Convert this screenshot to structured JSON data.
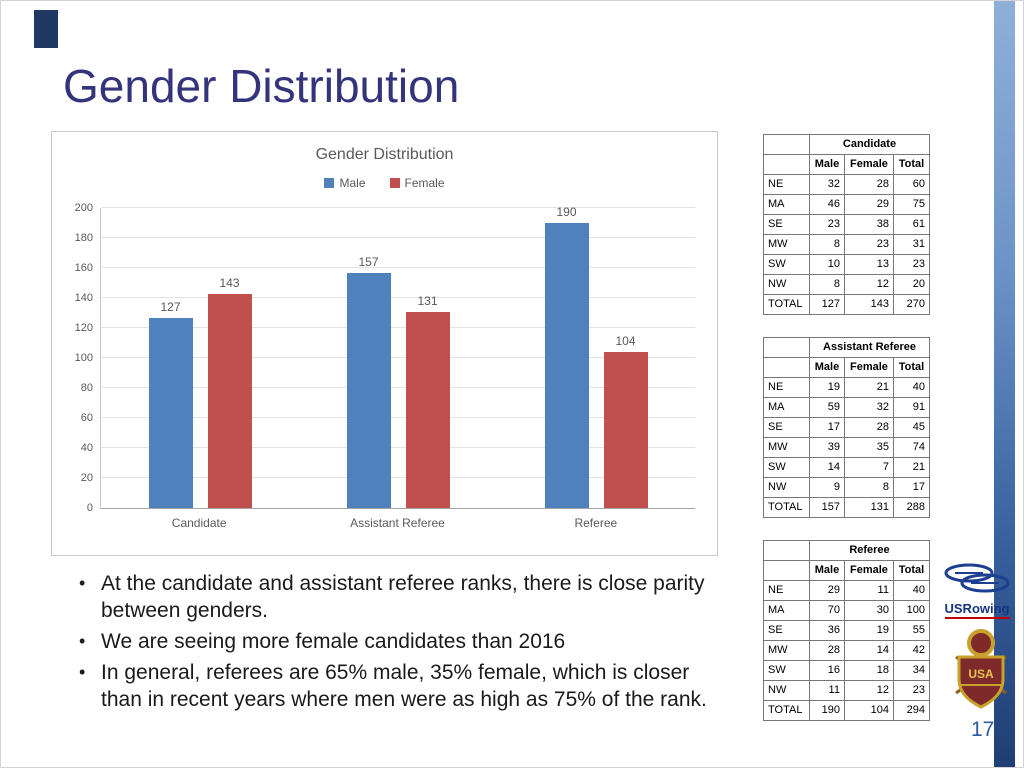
{
  "slide": {
    "title": "Gender Distribution",
    "page_number": "17"
  },
  "chart_data": {
    "type": "bar",
    "title": "Gender Distribution",
    "categories": [
      "Candidate",
      "Assistant Referee",
      "Referee"
    ],
    "series": [
      {
        "name": "Male",
        "color": "#4F81BD",
        "values": [
          127,
          157,
          190
        ]
      },
      {
        "name": "Female",
        "color": "#C0504D",
        "values": [
          143,
          131,
          104
        ]
      }
    ],
    "ylim": [
      0,
      200
    ],
    "ytick_step": 20,
    "grid": true,
    "legend_position": "top",
    "data_labels": true,
    "xlabel": "",
    "ylabel": ""
  },
  "tables": [
    {
      "title": "Candidate",
      "columns": [
        "Male",
        "Female",
        "Total"
      ],
      "rows": [
        {
          "label": "NE",
          "values": [
            "32",
            "28",
            "60"
          ]
        },
        {
          "label": "MA",
          "values": [
            "46",
            "29",
            "75"
          ]
        },
        {
          "label": "SE",
          "values": [
            "23",
            "38",
            "61"
          ]
        },
        {
          "label": "MW",
          "values": [
            "8",
            "23",
            "31"
          ]
        },
        {
          "label": "SW",
          "values": [
            "10",
            "13",
            "23"
          ]
        },
        {
          "label": "NW",
          "values": [
            "8",
            "12",
            "20"
          ]
        },
        {
          "label": "TOTAL",
          "values": [
            "127",
            "143",
            "270"
          ]
        }
      ]
    },
    {
      "title": "Assistant Referee",
      "columns": [
        "Male",
        "Female",
        "Total"
      ],
      "rows": [
        {
          "label": "NE",
          "values": [
            "19",
            "21",
            "40"
          ]
        },
        {
          "label": "MA",
          "values": [
            "59",
            "32",
            "91"
          ]
        },
        {
          "label": "SE",
          "values": [
            "17",
            "28",
            "45"
          ]
        },
        {
          "label": "MW",
          "values": [
            "39",
            "35",
            "74"
          ]
        },
        {
          "label": "SW",
          "values": [
            "14",
            "7",
            "21"
          ]
        },
        {
          "label": "NW",
          "values": [
            "9",
            "8",
            "17"
          ]
        },
        {
          "label": "TOTAL",
          "values": [
            "157",
            "131",
            "288"
          ]
        }
      ]
    },
    {
      "title": "Referee",
      "columns": [
        "Male",
        "Female",
        "Total"
      ],
      "rows": [
        {
          "label": "NE",
          "values": [
            "29",
            "11",
            "40"
          ]
        },
        {
          "label": "MA",
          "values": [
            "70",
            "30",
            "100"
          ]
        },
        {
          "label": "SE",
          "values": [
            "36",
            "19",
            "55"
          ]
        },
        {
          "label": "MW",
          "values": [
            "28",
            "14",
            "42"
          ]
        },
        {
          "label": "SW",
          "values": [
            "16",
            "18",
            "34"
          ]
        },
        {
          "label": "NW",
          "values": [
            "11",
            "12",
            "23"
          ]
        },
        {
          "label": "TOTAL",
          "values": [
            "190",
            "104",
            "294"
          ]
        }
      ]
    }
  ],
  "bullets": [
    "At the candidate and assistant referee ranks, there is close parity between genders.",
    "We are seeing more female candidates than 2016",
    "In general, referees are 65% male, 35% female, which is closer than in recent years where men were as high as 75% of the rank."
  ],
  "logos": {
    "usrowing": "USRowing",
    "crest": "USA"
  },
  "colors": {
    "male": "#4F81BD",
    "female": "#C0504D",
    "title": "#34347C",
    "page_number": "#2E5B9F"
  }
}
